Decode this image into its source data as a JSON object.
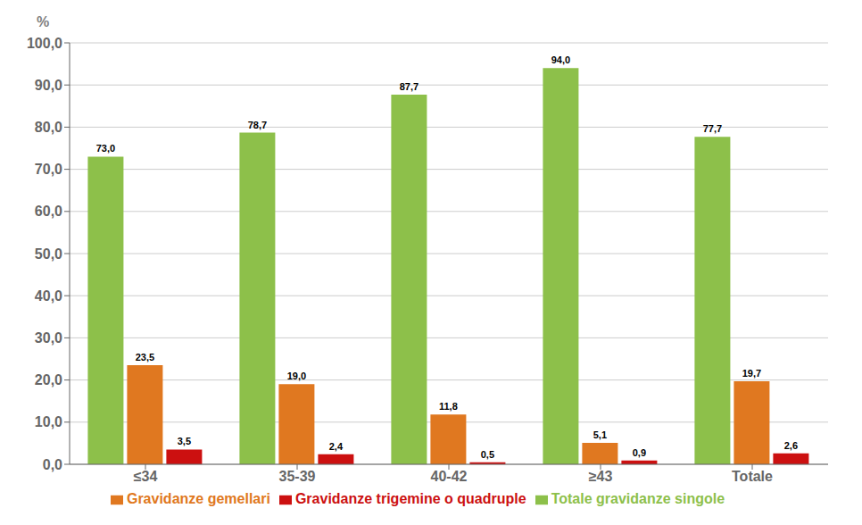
{
  "chart_data": {
    "type": "bar",
    "categories": [
      "≤34",
      "35-39",
      "40-42",
      "≥43",
      "Totale"
    ],
    "series": [
      {
        "name": "Totale gravidanze singole",
        "color": "#8DC04A",
        "values": [
          73.0,
          78.7,
          87.7,
          94.0,
          77.7
        ],
        "value_labels": [
          "73,0",
          "78,7",
          "87,7",
          "94,0",
          "77,7"
        ]
      },
      {
        "name": "Gravidanze gemellari",
        "color": "#E07820",
        "values": [
          23.5,
          19.0,
          11.8,
          5.1,
          19.7
        ],
        "value_labels": [
          "23,5",
          "19,0",
          "11,8",
          "5,1",
          "19,7"
        ]
      },
      {
        "name": "Gravidanze trigemine o quadruple",
        "color": "#CC1010",
        "values": [
          3.5,
          2.4,
          0.5,
          0.9,
          2.6
        ],
        "value_labels": [
          "3,5",
          "2,4",
          "0,5",
          "0,9",
          "2,6"
        ]
      }
    ],
    "ylabel": "%",
    "ylim": [
      0,
      100
    ],
    "yticks": [
      {
        "value": 0,
        "label": "0,0"
      },
      {
        "value": 10,
        "label": "10,0"
      },
      {
        "value": 20,
        "label": "20,0"
      },
      {
        "value": 30,
        "label": "30,0"
      },
      {
        "value": 40,
        "label": "40,0"
      },
      {
        "value": 50,
        "label": "50,0"
      },
      {
        "value": 60,
        "label": "60,0"
      },
      {
        "value": 70,
        "label": "70,0"
      },
      {
        "value": 80,
        "label": "80,0"
      },
      {
        "value": 90,
        "label": "90,0"
      },
      {
        "value": 100,
        "label": "100,0"
      }
    ],
    "grid": true,
    "legend": "bottom",
    "data_labels": true
  }
}
